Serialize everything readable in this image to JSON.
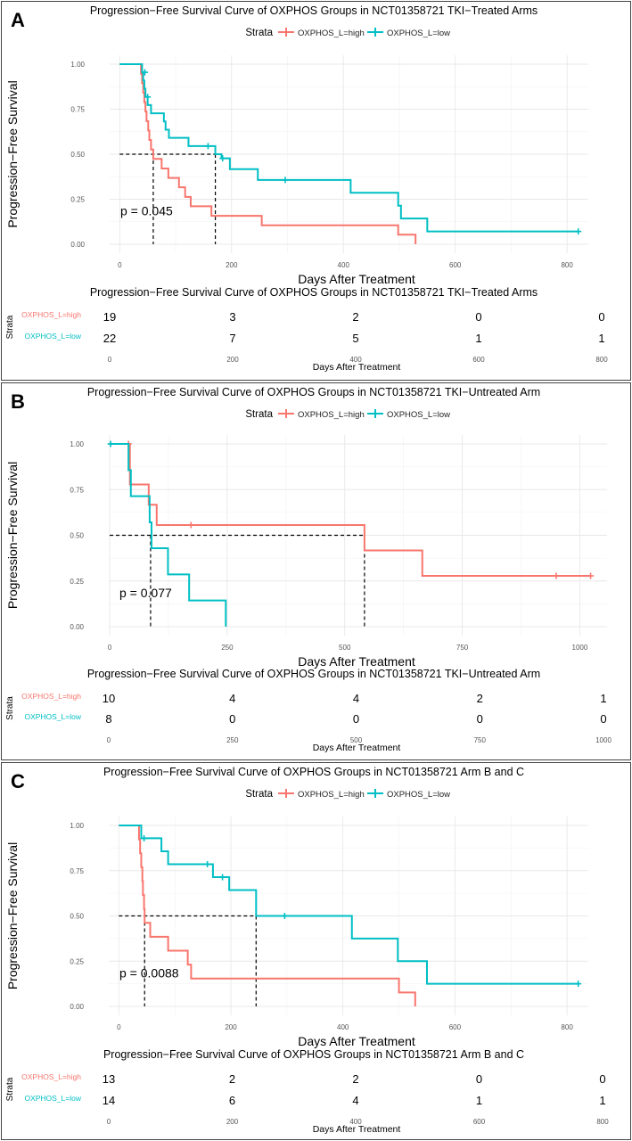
{
  "colors": {
    "high": "#f8766d",
    "low": "#00bfc4"
  },
  "panels": [
    {
      "letter": "A",
      "title": "Progression−Free Survival Curve of OXPHOS Groups in NCT01358721 TKI−Treated Arms",
      "risk_title": "Progression−Free Survival Curve of OXPHOS Groups in NCT01358721 TKI−Treated Arms",
      "legend_title": "Strata",
      "pvalue": "p = 0.045",
      "median_lines": [
        60,
        171
      ],
      "chart_data": {
        "type": "line",
        "xlabel": "Days After Treatment",
        "ylabel": "Progression−Free Survival",
        "xlim": [
          -18,
          838
        ],
        "ylim": [
          0,
          1
        ],
        "xticks": [
          0,
          200,
          400,
          600,
          800
        ],
        "xtick_labels": [
          "0",
          "200",
          "400",
          "600",
          "800"
        ],
        "yticks": [
          0,
          0.25,
          0.5,
          0.75,
          1.0
        ],
        "ytick_labels": [
          "0.00",
          "0.25",
          "0.50",
          "0.75",
          "1.00"
        ],
        "grid": true,
        "legend_position": "top",
        "series": [
          {
            "name": "OXPHOS_L=high",
            "color_key": "high",
            "steps": [
              [
                0,
                1.0
              ],
              [
                38,
                0.947
              ],
              [
                40,
                0.895
              ],
              [
                42,
                0.842
              ],
              [
                44,
                0.789
              ],
              [
                46,
                0.737
              ],
              [
                48,
                0.684
              ],
              [
                51,
                0.632
              ],
              [
                53,
                0.579
              ],
              [
                56,
                0.526
              ],
              [
                60,
                0.474
              ],
              [
                75,
                0.421
              ],
              [
                87,
                0.368
              ],
              [
                106,
                0.316
              ],
              [
                117,
                0.263
              ],
              [
                127,
                0.211
              ],
              [
                164,
                0.158
              ],
              [
                254,
                0.105
              ],
              [
                498,
                0.053
              ],
              [
                529,
                0.0
              ]
            ],
            "censors": []
          },
          {
            "name": "OXPHOS_L=low",
            "color_key": "low",
            "steps": [
              [
                0,
                1.0
              ],
              [
                40,
                0.955
              ],
              [
                42,
                0.909
              ],
              [
                44,
                0.864
              ],
              [
                46,
                0.818
              ],
              [
                50,
                0.773
              ],
              [
                56,
                0.727
              ],
              [
                79,
                0.682
              ],
              [
                82,
                0.636
              ],
              [
                88,
                0.591
              ],
              [
                123,
                0.545
              ],
              [
                171,
                0.5
              ],
              [
                182,
                0.477
              ],
              [
                197,
                0.417
              ],
              [
                247,
                0.357
              ],
              [
                413,
                0.286
              ],
              [
                498,
                0.214
              ],
              [
                503,
                0.143
              ],
              [
                550,
                0.071
              ]
            ],
            "end_x": 820,
            "censors": [
              [
                45,
                0.955
              ],
              [
                50,
                0.818
              ],
              [
                158,
                0.545
              ],
              [
                184,
                0.477
              ],
              [
                296,
                0.357
              ],
              [
                820,
                0.071
              ]
            ]
          }
        ]
      },
      "risk": {
        "xlabel": "Days After Treatment",
        "ticks": [
          "0",
          "200",
          "400",
          "600",
          "800"
        ],
        "ylabel": "Strata",
        "rows": [
          {
            "name": "OXPHOS_L=high",
            "color_key": "high",
            "counts": [
              "19",
              "3",
              "2",
              "0",
              "0"
            ]
          },
          {
            "name": "OXPHOS_L=low",
            "color_key": "low",
            "counts": [
              "22",
              "7",
              "5",
              "1",
              "1"
            ]
          }
        ]
      }
    },
    {
      "letter": "B",
      "title": "Progression−Free Survival Curve of OXPHOS Groups in NCT01358721 TKI−Untreated Arm",
      "risk_title": "Progression−Free Survival Curve of OXPHOS Groups in NCT01358721 TKI−Untreated Arm",
      "legend_title": "Strata",
      "pvalue": "p = 0.077",
      "median_lines": [
        87,
        542
      ],
      "chart_data": {
        "type": "line",
        "xlabel": "Days After Treatment",
        "ylabel": "Progression−Free Survival",
        "xlim": [
          -2,
          1058
        ],
        "ylim": [
          0,
          1
        ],
        "xticks": [
          0,
          250,
          500,
          750,
          1000
        ],
        "xtick_labels": [
          "0",
          "250",
          "500",
          "750",
          "1000"
        ],
        "yticks": [
          0,
          0.25,
          0.5,
          0.75,
          1.0
        ],
        "ytick_labels": [
          "0.00",
          "0.25",
          "0.50",
          "0.75",
          "1.00"
        ],
        "grid": true,
        "legend_position": "top",
        "series": [
          {
            "name": "OXPHOS_L=high",
            "color_key": "high",
            "steps": [
              [
                0,
                1.0
              ],
              [
                43,
                0.778
              ],
              [
                83,
                0.667
              ],
              [
                100,
                0.556
              ],
              [
                542,
                0.417
              ],
              [
                665,
                0.278
              ]
            ],
            "end_x": 1023,
            "censors": [
              [
                40,
                1.0
              ],
              [
                173,
                0.556
              ],
              [
                950,
                0.278
              ],
              [
                1023,
                0.278
              ]
            ]
          },
          {
            "name": "OXPHOS_L=low",
            "color_key": "low",
            "steps": [
              [
                0,
                1.0
              ],
              [
                40,
                0.857
              ],
              [
                45,
                0.714
              ],
              [
                85,
                0.571
              ],
              [
                89,
                0.429
              ],
              [
                124,
                0.286
              ],
              [
                169,
                0.143
              ],
              [
                247,
                0.0
              ]
            ],
            "censors": [
              [
                2,
                1.0
              ]
            ]
          }
        ]
      },
      "risk": {
        "xlabel": "Days After Treatment",
        "ticks": [
          "0",
          "250",
          "500",
          "750",
          "1000"
        ],
        "ylabel": "Strata",
        "rows": [
          {
            "name": "OXPHOS_L=high",
            "color_key": "high",
            "counts": [
              "10",
              "4",
              "4",
              "2",
              "1"
            ]
          },
          {
            "name": "OXPHOS_L=low",
            "color_key": "low",
            "counts": [
              "8",
              "0",
              "0",
              "0",
              "0"
            ]
          }
        ]
      }
    },
    {
      "letter": "C",
      "title": "Progression−Free Survival Curve of OXPHOS Groups in NCT01358721 Arm B and C",
      "risk_title": "Progression−Free Survival Curve of OXPHOS Groups in NCT01358721 Arm B and C",
      "legend_title": "Strata",
      "pvalue": "p = 0.0088",
      "median_lines": [
        46,
        245
      ],
      "chart_data": {
        "type": "line",
        "xlabel": "Days After Treatment",
        "ylabel": "Progression−Free Survival",
        "xlim": [
          -18,
          838
        ],
        "ylim": [
          0,
          1
        ],
        "xticks": [
          0,
          200,
          400,
          600,
          800
        ],
        "xtick_labels": [
          "0",
          "200",
          "400",
          "600",
          "800"
        ],
        "yticks": [
          0,
          0.25,
          0.5,
          0.75,
          1.0
        ],
        "ytick_labels": [
          "0.00",
          "0.25",
          "0.50",
          "0.75",
          "1.00"
        ],
        "grid": true,
        "legend_position": "top",
        "series": [
          {
            "name": "OXPHOS_L=high",
            "color_key": "high",
            "steps": [
              [
                0,
                1.0
              ],
              [
                36,
                0.923
              ],
              [
                38,
                0.846
              ],
              [
                40,
                0.769
              ],
              [
                42,
                0.692
              ],
              [
                43,
                0.615
              ],
              [
                45,
                0.538
              ],
              [
                46,
                0.462
              ],
              [
                56,
                0.385
              ],
              [
                88,
                0.308
              ],
              [
                123,
                0.231
              ],
              [
                129,
                0.154
              ],
              [
                500,
                0.077
              ],
              [
                529,
                0.0
              ]
            ],
            "censors": []
          },
          {
            "name": "OXPHOS_L=low",
            "color_key": "low",
            "steps": [
              [
                0,
                1.0
              ],
              [
                40,
                0.929
              ],
              [
                76,
                0.857
              ],
              [
                88,
                0.786
              ],
              [
                168,
                0.714
              ],
              [
                197,
                0.643
              ],
              [
                245,
                0.5
              ],
              [
                416,
                0.375
              ],
              [
                498,
                0.25
              ],
              [
                550,
                0.125
              ]
            ],
            "end_x": 820,
            "censors": [
              [
                45,
                0.929
              ],
              [
                158,
                0.786
              ],
              [
                185,
                0.714
              ],
              [
                296,
                0.5
              ],
              [
                820,
                0.125
              ]
            ]
          }
        ]
      },
      "risk": {
        "xlabel": "Days After Treatment",
        "ticks": [
          "0",
          "200",
          "400",
          "600",
          "800"
        ],
        "ylabel": "Strata",
        "rows": [
          {
            "name": "OXPHOS_L=high",
            "color_key": "high",
            "counts": [
              "13",
              "2",
              "2",
              "0",
              "0"
            ]
          },
          {
            "name": "OXPHOS_L=low",
            "color_key": "low",
            "counts": [
              "14",
              "6",
              "4",
              "1",
              "1"
            ]
          }
        ]
      }
    }
  ]
}
